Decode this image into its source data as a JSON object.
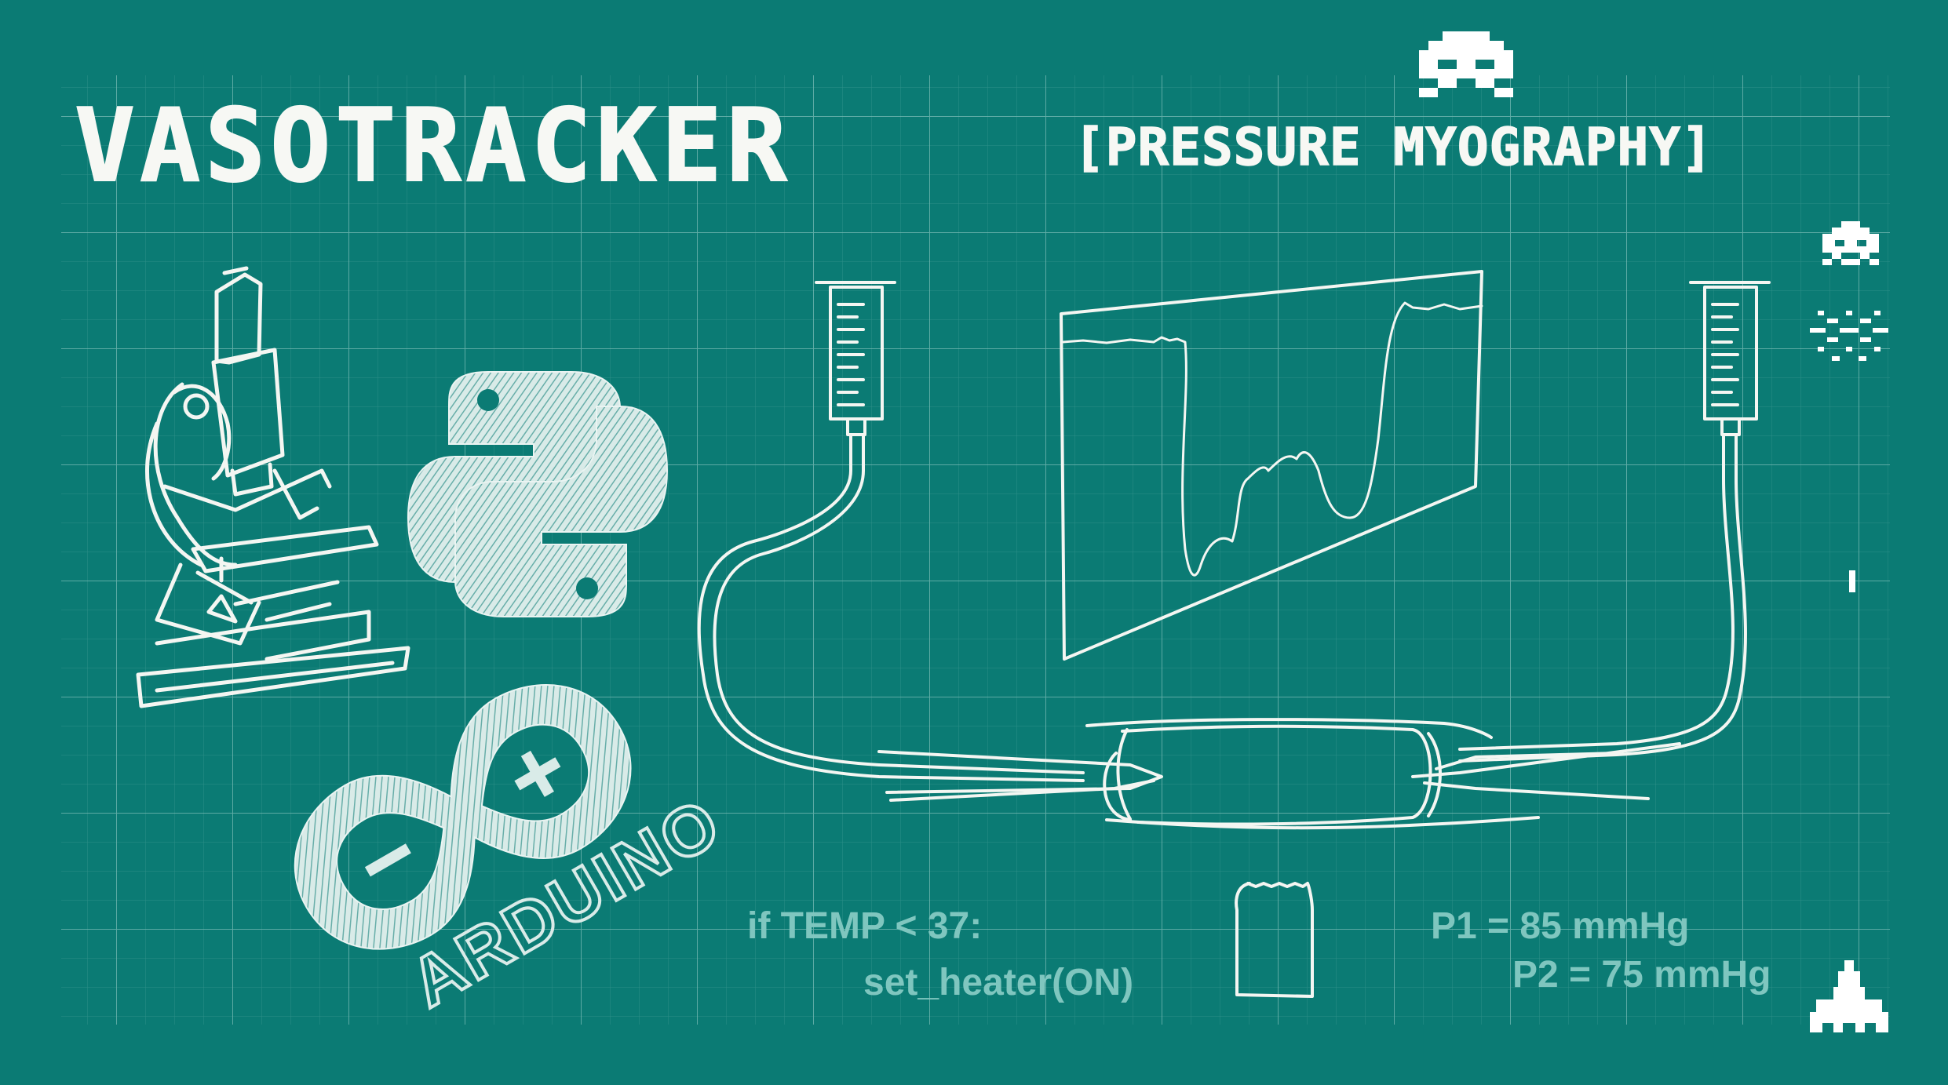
{
  "poster": {
    "title": "VASOTRACKER",
    "subtitle": "[PRESSURE MYOGRAPHY]",
    "arduino_label": "ARDUINO",
    "code": {
      "line1": "if TEMP < 37:",
      "line2": "set_heater(ON)"
    },
    "pressure": {
      "p1": "P1 = 85 mmHg",
      "p2": "P2 = 75 mmHg"
    }
  },
  "colors": {
    "background": "#0b7b74",
    "chalk": "#f4f6f2",
    "faded_text": "#7fc6bf"
  },
  "icons": [
    "microscope-icon",
    "python-logo-icon",
    "arduino-logo-icon",
    "syringe-icon",
    "space-invader-icon",
    "spaceship-icon",
    "explosion-icon",
    "vial-icon"
  ]
}
